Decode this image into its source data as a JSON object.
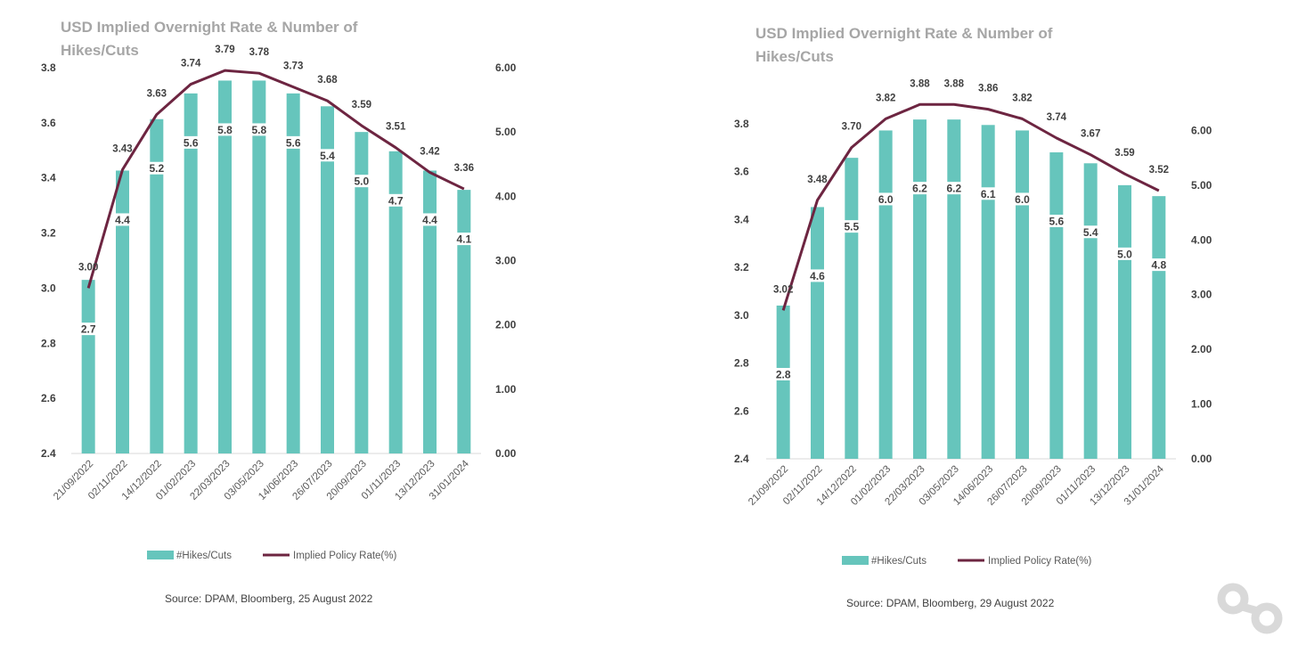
{
  "chart_data": [
    {
      "type": "bar+line",
      "title": "USD Implied Overnight Rate & Number of Hikes/Cuts",
      "source": "Source: DPAM, Bloomberg, 25 August 2022",
      "categories": [
        "21/09/2022",
        "02/11/2022",
        "14/12/2022",
        "01/02/2023",
        "22/03/2023",
        "03/05/2023",
        "14/06/2023",
        "26/07/2023",
        "20/09/2023",
        "01/11/2023",
        "13/12/2023",
        "31/01/2024"
      ],
      "series": [
        {
          "name": "#Hikes/Cuts",
          "type": "bar",
          "axis": "right",
          "values": [
            2.7,
            4.4,
            5.2,
            5.6,
            5.8,
            5.8,
            5.6,
            5.4,
            5.0,
            4.7,
            4.4,
            4.1
          ],
          "labels": [
            "2.7",
            "4.4",
            "5.2",
            "5.6",
            "5.8",
            "5.8",
            "5.6",
            "5.4",
            "5.0",
            "4.7",
            "4.4",
            "4.1"
          ],
          "color": "#66c5bc"
        },
        {
          "name": "Implied Policy Rate(%)",
          "type": "line",
          "axis": "left",
          "values": [
            3.0,
            3.43,
            3.63,
            3.74,
            3.79,
            3.78,
            3.73,
            3.68,
            3.59,
            3.51,
            3.42,
            3.36
          ],
          "labels": [
            "3.00",
            "3.43",
            "3.63",
            "3.74",
            "3.79",
            "3.78",
            "3.73",
            "3.68",
            "3.59",
            "3.51",
            "3.42",
            "3.36"
          ],
          "color": "#6d2541"
        }
      ],
      "y_left": {
        "min": 2.4,
        "max": 3.8,
        "ticks": [
          "2.4",
          "2.6",
          "2.8",
          "3.0",
          "3.2",
          "3.4",
          "3.6",
          "3.8"
        ]
      },
      "y_right": {
        "min": 0,
        "max": 6,
        "ticks": [
          "0.00",
          "1.00",
          "2.00",
          "3.00",
          "4.00",
          "5.00",
          "6.00"
        ]
      },
      "legend_position": "bottom"
    },
    {
      "type": "bar+line",
      "title": "USD Implied Overnight Rate & Number of Hikes/Cuts",
      "source": "Source: DPAM, Bloomberg, 29 August 2022",
      "categories": [
        "21/09/2022",
        "02/11/2022",
        "14/12/2022",
        "01/02/2023",
        "22/03/2023",
        "03/05/2023",
        "14/06/2023",
        "26/07/2023",
        "20/09/2023",
        "01/11/2023",
        "13/12/2023",
        "31/01/2024"
      ],
      "series": [
        {
          "name": "#Hikes/Cuts",
          "type": "bar",
          "axis": "right",
          "values": [
            2.8,
            4.6,
            5.5,
            6.0,
            6.2,
            6.2,
            6.1,
            6.0,
            5.6,
            5.4,
            5.0,
            4.8
          ],
          "labels": [
            "2.8",
            "4.6",
            "5.5",
            "6.0",
            "6.2",
            "6.2",
            "6.1",
            "6.0",
            "5.6",
            "5.4",
            "5.0",
            "4.8"
          ],
          "color": "#66c5bc"
        },
        {
          "name": "Implied Policy Rate(%)",
          "type": "line",
          "axis": "left",
          "values": [
            3.02,
            3.48,
            3.7,
            3.82,
            3.88,
            3.88,
            3.86,
            3.82,
            3.74,
            3.67,
            3.59,
            3.52
          ],
          "labels": [
            "3.02",
            "3.48",
            "3.70",
            "3.82",
            "3.88",
            "3.88",
            "3.86",
            "3.82",
            "3.74",
            "3.67",
            "3.59",
            "3.52"
          ],
          "color": "#6d2541"
        }
      ],
      "y_left": {
        "min": 2.4,
        "max": 4.0,
        "ticks": [
          "2.4",
          "2.6",
          "2.8",
          "3.0",
          "3.2",
          "3.4",
          "3.6",
          "3.8"
        ]
      },
      "y_right": {
        "min": 0,
        "max": 7,
        "ticks": [
          "0.00",
          "1.00",
          "2.00",
          "3.00",
          "4.00",
          "5.00",
          "6.00"
        ]
      },
      "legend_position": "bottom"
    }
  ],
  "logo": {
    "name": "dpam-logo",
    "color": "#d9d9d9"
  }
}
